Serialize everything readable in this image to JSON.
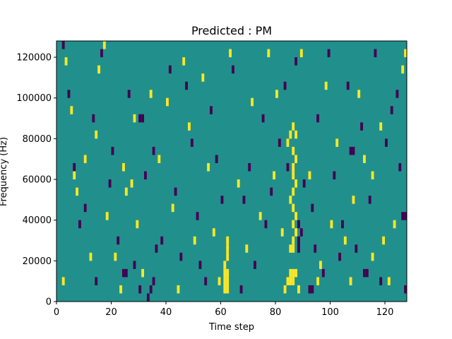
{
  "chart_data": {
    "type": "heatmap",
    "title": "Predicted : PM",
    "xlabel": "Time step",
    "ylabel": "Frequency (Hz)",
    "xlim": [
      0,
      128
    ],
    "ylim": [
      0,
      128000
    ],
    "x_ticks": [
      0,
      20,
      40,
      60,
      80,
      100,
      120
    ],
    "y_ticks": [
      0,
      20000,
      40000,
      60000,
      80000,
      100000,
      120000
    ],
    "x_tick_labels": [
      "0",
      "20",
      "40",
      "60",
      "80",
      "100",
      "120"
    ],
    "y_tick_labels": [
      "0",
      "20000",
      "40000",
      "60000",
      "80000",
      "100000",
      "120000"
    ],
    "grid": false,
    "colormap": "viridis",
    "values_legend": {
      "-1": "#440154",
      "0": "#21908c",
      "1": "#fde725"
    },
    "background_value": 0,
    "cell_height_hz": 4000,
    "cells_high": [
      [
        61,
        4000
      ],
      [
        61,
        8000
      ],
      [
        61,
        12000
      ],
      [
        62,
        4000
      ],
      [
        62,
        8000
      ],
      [
        62,
        12000
      ],
      [
        61,
        16000
      ],
      [
        62,
        20000
      ],
      [
        62,
        24000
      ],
      [
        62,
        28000
      ],
      [
        85,
        8000
      ],
      [
        85,
        12000
      ],
      [
        86,
        8000
      ],
      [
        86,
        12000
      ],
      [
        84,
        8000
      ],
      [
        87,
        12000
      ],
      [
        86,
        24000
      ],
      [
        86,
        28000
      ],
      [
        85,
        24000
      ],
      [
        87,
        32000
      ],
      [
        86,
        36000
      ],
      [
        86,
        44000
      ],
      [
        85,
        48000
      ],
      [
        87,
        56000
      ],
      [
        86,
        60000
      ],
      [
        86,
        64000
      ],
      [
        87,
        68000
      ],
      [
        86,
        72000
      ],
      [
        87,
        80000
      ],
      [
        86,
        84000
      ],
      [
        85,
        80000
      ],
      [
        84,
        76000
      ],
      [
        86,
        52000
      ],
      [
        87,
        40000
      ],
      [
        83,
        4000
      ],
      [
        88,
        4000
      ],
      [
        2,
        8000
      ],
      [
        3,
        116000
      ],
      [
        5,
        92000
      ],
      [
        6,
        60000
      ],
      [
        7,
        52000
      ],
      [
        10,
        68000
      ],
      [
        12,
        20000
      ],
      [
        14,
        80000
      ],
      [
        15,
        112000
      ],
      [
        17,
        124000
      ],
      [
        18,
        40000
      ],
      [
        21,
        20000
      ],
      [
        23,
        4000
      ],
      [
        24,
        64000
      ],
      [
        25,
        52000
      ],
      [
        27,
        56000
      ],
      [
        28,
        88000
      ],
      [
        29,
        36000
      ],
      [
        31,
        12000
      ],
      [
        34,
        100000
      ],
      [
        37,
        68000
      ],
      [
        40,
        96000
      ],
      [
        42,
        44000
      ],
      [
        44,
        4000
      ],
      [
        46,
        116000
      ],
      [
        48,
        84000
      ],
      [
        50,
        28000
      ],
      [
        53,
        108000
      ],
      [
        55,
        64000
      ],
      [
        57,
        32000
      ],
      [
        59,
        8000
      ],
      [
        63,
        120000
      ],
      [
        66,
        56000
      ],
      [
        69,
        24000
      ],
      [
        71,
        96000
      ],
      [
        74,
        40000
      ],
      [
        77,
        120000
      ],
      [
        80,
        100000
      ],
      [
        82,
        32000
      ],
      [
        89,
        120000
      ],
      [
        92,
        60000
      ],
      [
        95,
        8000
      ],
      [
        98,
        104000
      ],
      [
        100,
        36000
      ],
      [
        102,
        76000
      ],
      [
        105,
        28000
      ],
      [
        107,
        8000
      ],
      [
        110,
        100000
      ],
      [
        112,
        68000
      ],
      [
        115,
        60000
      ],
      [
        118,
        84000
      ],
      [
        121,
        8000
      ],
      [
        123,
        36000
      ],
      [
        126,
        112000
      ],
      [
        127,
        120000
      ],
      [
        119,
        28000
      ],
      [
        115,
        20000
      ],
      [
        108,
        48000
      ],
      [
        96,
        16000
      ],
      [
        79,
        60000
      ]
    ],
    "cells_low": [
      [
        33,
        0
      ],
      [
        34,
        4000
      ],
      [
        35,
        8000
      ],
      [
        14,
        8000
      ],
      [
        24,
        12000
      ],
      [
        25,
        12000
      ],
      [
        30,
        88000
      ],
      [
        31,
        88000
      ],
      [
        107,
        72000
      ],
      [
        108,
        72000
      ],
      [
        112,
        12000
      ],
      [
        113,
        12000
      ],
      [
        126,
        40000
      ],
      [
        127,
        40000
      ],
      [
        88,
        24000
      ],
      [
        88,
        28000
      ],
      [
        89,
        32000
      ],
      [
        88,
        36000
      ],
      [
        92,
        4000
      ],
      [
        93,
        4000
      ],
      [
        2,
        124000
      ],
      [
        4,
        100000
      ],
      [
        6,
        64000
      ],
      [
        8,
        36000
      ],
      [
        10,
        44000
      ],
      [
        13,
        88000
      ],
      [
        16,
        120000
      ],
      [
        19,
        56000
      ],
      [
        22,
        28000
      ],
      [
        26,
        100000
      ],
      [
        28,
        16000
      ],
      [
        30,
        4000
      ],
      [
        32,
        60000
      ],
      [
        35,
        72000
      ],
      [
        38,
        28000
      ],
      [
        41,
        112000
      ],
      [
        43,
        52000
      ],
      [
        45,
        20000
      ],
      [
        47,
        104000
      ],
      [
        49,
        76000
      ],
      [
        51,
        40000
      ],
      [
        54,
        8000
      ],
      [
        56,
        92000
      ],
      [
        58,
        68000
      ],
      [
        60,
        48000
      ],
      [
        64,
        112000
      ],
      [
        67,
        4000
      ],
      [
        70,
        64000
      ],
      [
        72,
        16000
      ],
      [
        75,
        88000
      ],
      [
        78,
        52000
      ],
      [
        81,
        76000
      ],
      [
        83,
        104000
      ],
      [
        87,
        116000
      ],
      [
        90,
        56000
      ],
      [
        93,
        44000
      ],
      [
        95,
        88000
      ],
      [
        97,
        12000
      ],
      [
        99,
        120000
      ],
      [
        101,
        60000
      ],
      [
        103,
        20000
      ],
      [
        106,
        104000
      ],
      [
        109,
        24000
      ],
      [
        111,
        84000
      ],
      [
        114,
        48000
      ],
      [
        116,
        120000
      ],
      [
        118,
        8000
      ],
      [
        120,
        76000
      ],
      [
        122,
        92000
      ],
      [
        125,
        64000
      ],
      [
        124,
        100000
      ],
      [
        127,
        4000
      ],
      [
        104,
        36000
      ],
      [
        94,
        24000
      ],
      [
        84,
        64000
      ],
      [
        76,
        36000
      ],
      [
        68,
        48000
      ],
      [
        52,
        16000
      ],
      [
        36,
        24000
      ],
      [
        20,
        72000
      ]
    ]
  }
}
